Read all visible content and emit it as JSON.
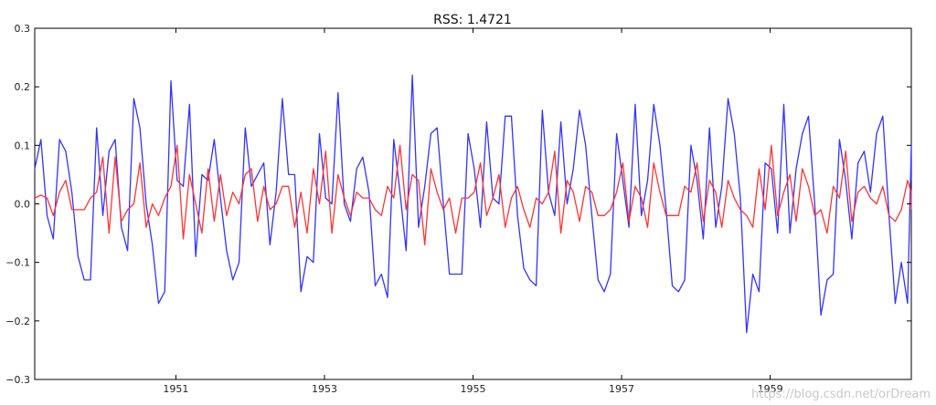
{
  "chart_data": {
    "type": "line",
    "title": "RSS: 1.4721",
    "xlabel": "",
    "ylabel": "",
    "xlim": [
      1949.1,
      1960.9
    ],
    "ylim": [
      -0.3,
      0.3
    ],
    "xticks": [
      1951,
      1953,
      1955,
      1957,
      1959
    ],
    "yticks": [
      -0.3,
      -0.2,
      -0.1,
      0.0,
      0.1,
      0.2,
      0.3
    ],
    "ytick_labels": [
      "−0.3",
      "−0.2",
      "−0.1",
      "0.0",
      "0.1",
      "0.2",
      "0.3"
    ],
    "grid": false,
    "legend": "none",
    "series": [
      {
        "color": "#3333ff",
        "x_start": 1949.1,
        "x_step": 0.08333,
        "values": [
          0.06,
          0.11,
          -0.02,
          -0.06,
          0.11,
          0.09,
          0.02,
          -0.09,
          -0.13,
          -0.13,
          0.13,
          -0.02,
          0.09,
          0.11,
          -0.04,
          -0.08,
          0.18,
          0.13,
          0.0,
          -0.07,
          -0.17,
          -0.15,
          0.21,
          0.04,
          0.03,
          0.17,
          -0.09,
          0.05,
          0.04,
          0.11,
          0.01,
          -0.08,
          -0.13,
          -0.1,
          0.13,
          0.03,
          0.05,
          0.07,
          -0.07,
          0.02,
          0.18,
          0.05,
          0.05,
          -0.15,
          -0.09,
          -0.1,
          0.12,
          0.01,
          0.0,
          0.19,
          0.0,
          -0.03,
          0.06,
          0.08,
          0.02,
          -0.14,
          -0.12,
          -0.16,
          0.11,
          0.02,
          -0.08,
          0.22,
          -0.04,
          0.03,
          0.12,
          0.13,
          0.0,
          -0.12,
          -0.12,
          -0.12,
          0.12,
          0.06,
          -0.04,
          0.14,
          0.01,
          0.0,
          0.15,
          0.15,
          -0.02,
          -0.11,
          -0.13,
          -0.14,
          0.16,
          0.02,
          -0.02,
          0.14,
          0.0,
          0.06,
          0.16,
          0.1,
          -0.02,
          -0.13,
          -0.15,
          -0.12,
          0.12,
          0.04,
          -0.04,
          0.17,
          -0.02,
          0.04,
          0.17,
          0.1,
          -0.01,
          -0.14,
          -0.15,
          -0.13,
          0.1,
          0.04,
          -0.06,
          0.13,
          -0.04,
          0.03,
          0.18,
          0.12,
          0.01,
          -0.22,
          -0.12,
          -0.15,
          0.07,
          0.06,
          -0.05,
          0.17,
          -0.05,
          0.06,
          0.12,
          0.15,
          0.0,
          -0.19,
          -0.13,
          -0.12,
          0.11,
          0.04,
          -0.06,
          0.07,
          0.09,
          0.02,
          0.12,
          0.15,
          -0.02,
          -0.17,
          -0.1,
          -0.17,
          0.1,
          0.04
        ]
      },
      {
        "color": "#ff3333",
        "x_start": 1949.1,
        "x_step": 0.08333,
        "values": [
          0.01,
          0.015,
          0.01,
          -0.02,
          0.02,
          0.04,
          -0.01,
          -0.01,
          -0.01,
          0.01,
          0.02,
          0.08,
          -0.05,
          0.08,
          -0.03,
          -0.01,
          0.0,
          0.07,
          -0.04,
          0.0,
          -0.02,
          0.01,
          0.03,
          0.1,
          -0.06,
          0.05,
          0.0,
          -0.05,
          0.06,
          -0.03,
          0.05,
          -0.02,
          0.02,
          0.0,
          0.05,
          0.06,
          -0.03,
          0.03,
          -0.01,
          0.0,
          0.03,
          0.03,
          -0.04,
          0.02,
          -0.05,
          0.06,
          0.0,
          0.09,
          -0.05,
          0.05,
          0.01,
          -0.02,
          0.02,
          0.01,
          0.01,
          -0.01,
          -0.02,
          0.03,
          0.01,
          0.1,
          -0.01,
          0.05,
          0.04,
          -0.07,
          0.06,
          0.02,
          -0.01,
          0.01,
          -0.05,
          0.01,
          0.01,
          0.02,
          0.07,
          -0.02,
          0.01,
          0.05,
          -0.04,
          0.01,
          0.03,
          -0.01,
          -0.04,
          0.01,
          0.0,
          0.02,
          0.09,
          -0.05,
          0.04,
          0.02,
          -0.03,
          0.03,
          0.02,
          -0.02,
          -0.02,
          -0.01,
          0.02,
          0.07,
          -0.03,
          0.03,
          0.01,
          -0.04,
          0.07,
          0.02,
          -0.02,
          -0.02,
          -0.02,
          0.03,
          0.02,
          0.07,
          -0.03,
          0.04,
          0.02,
          -0.04,
          0.04,
          0.01,
          -0.01,
          -0.02,
          -0.04,
          0.06,
          -0.01,
          0.1,
          -0.02,
          0.02,
          0.05,
          -0.03,
          0.06,
          0.03,
          -0.02,
          -0.01,
          -0.05,
          0.03,
          0.01,
          0.09,
          -0.03,
          0.02,
          0.03,
          0.01,
          0.0,
          0.03,
          -0.02,
          -0.03,
          -0.01,
          0.04,
          0.02,
          -0.01
        ]
      }
    ]
  },
  "watermark": "https://blog.csdn.net/orDream"
}
